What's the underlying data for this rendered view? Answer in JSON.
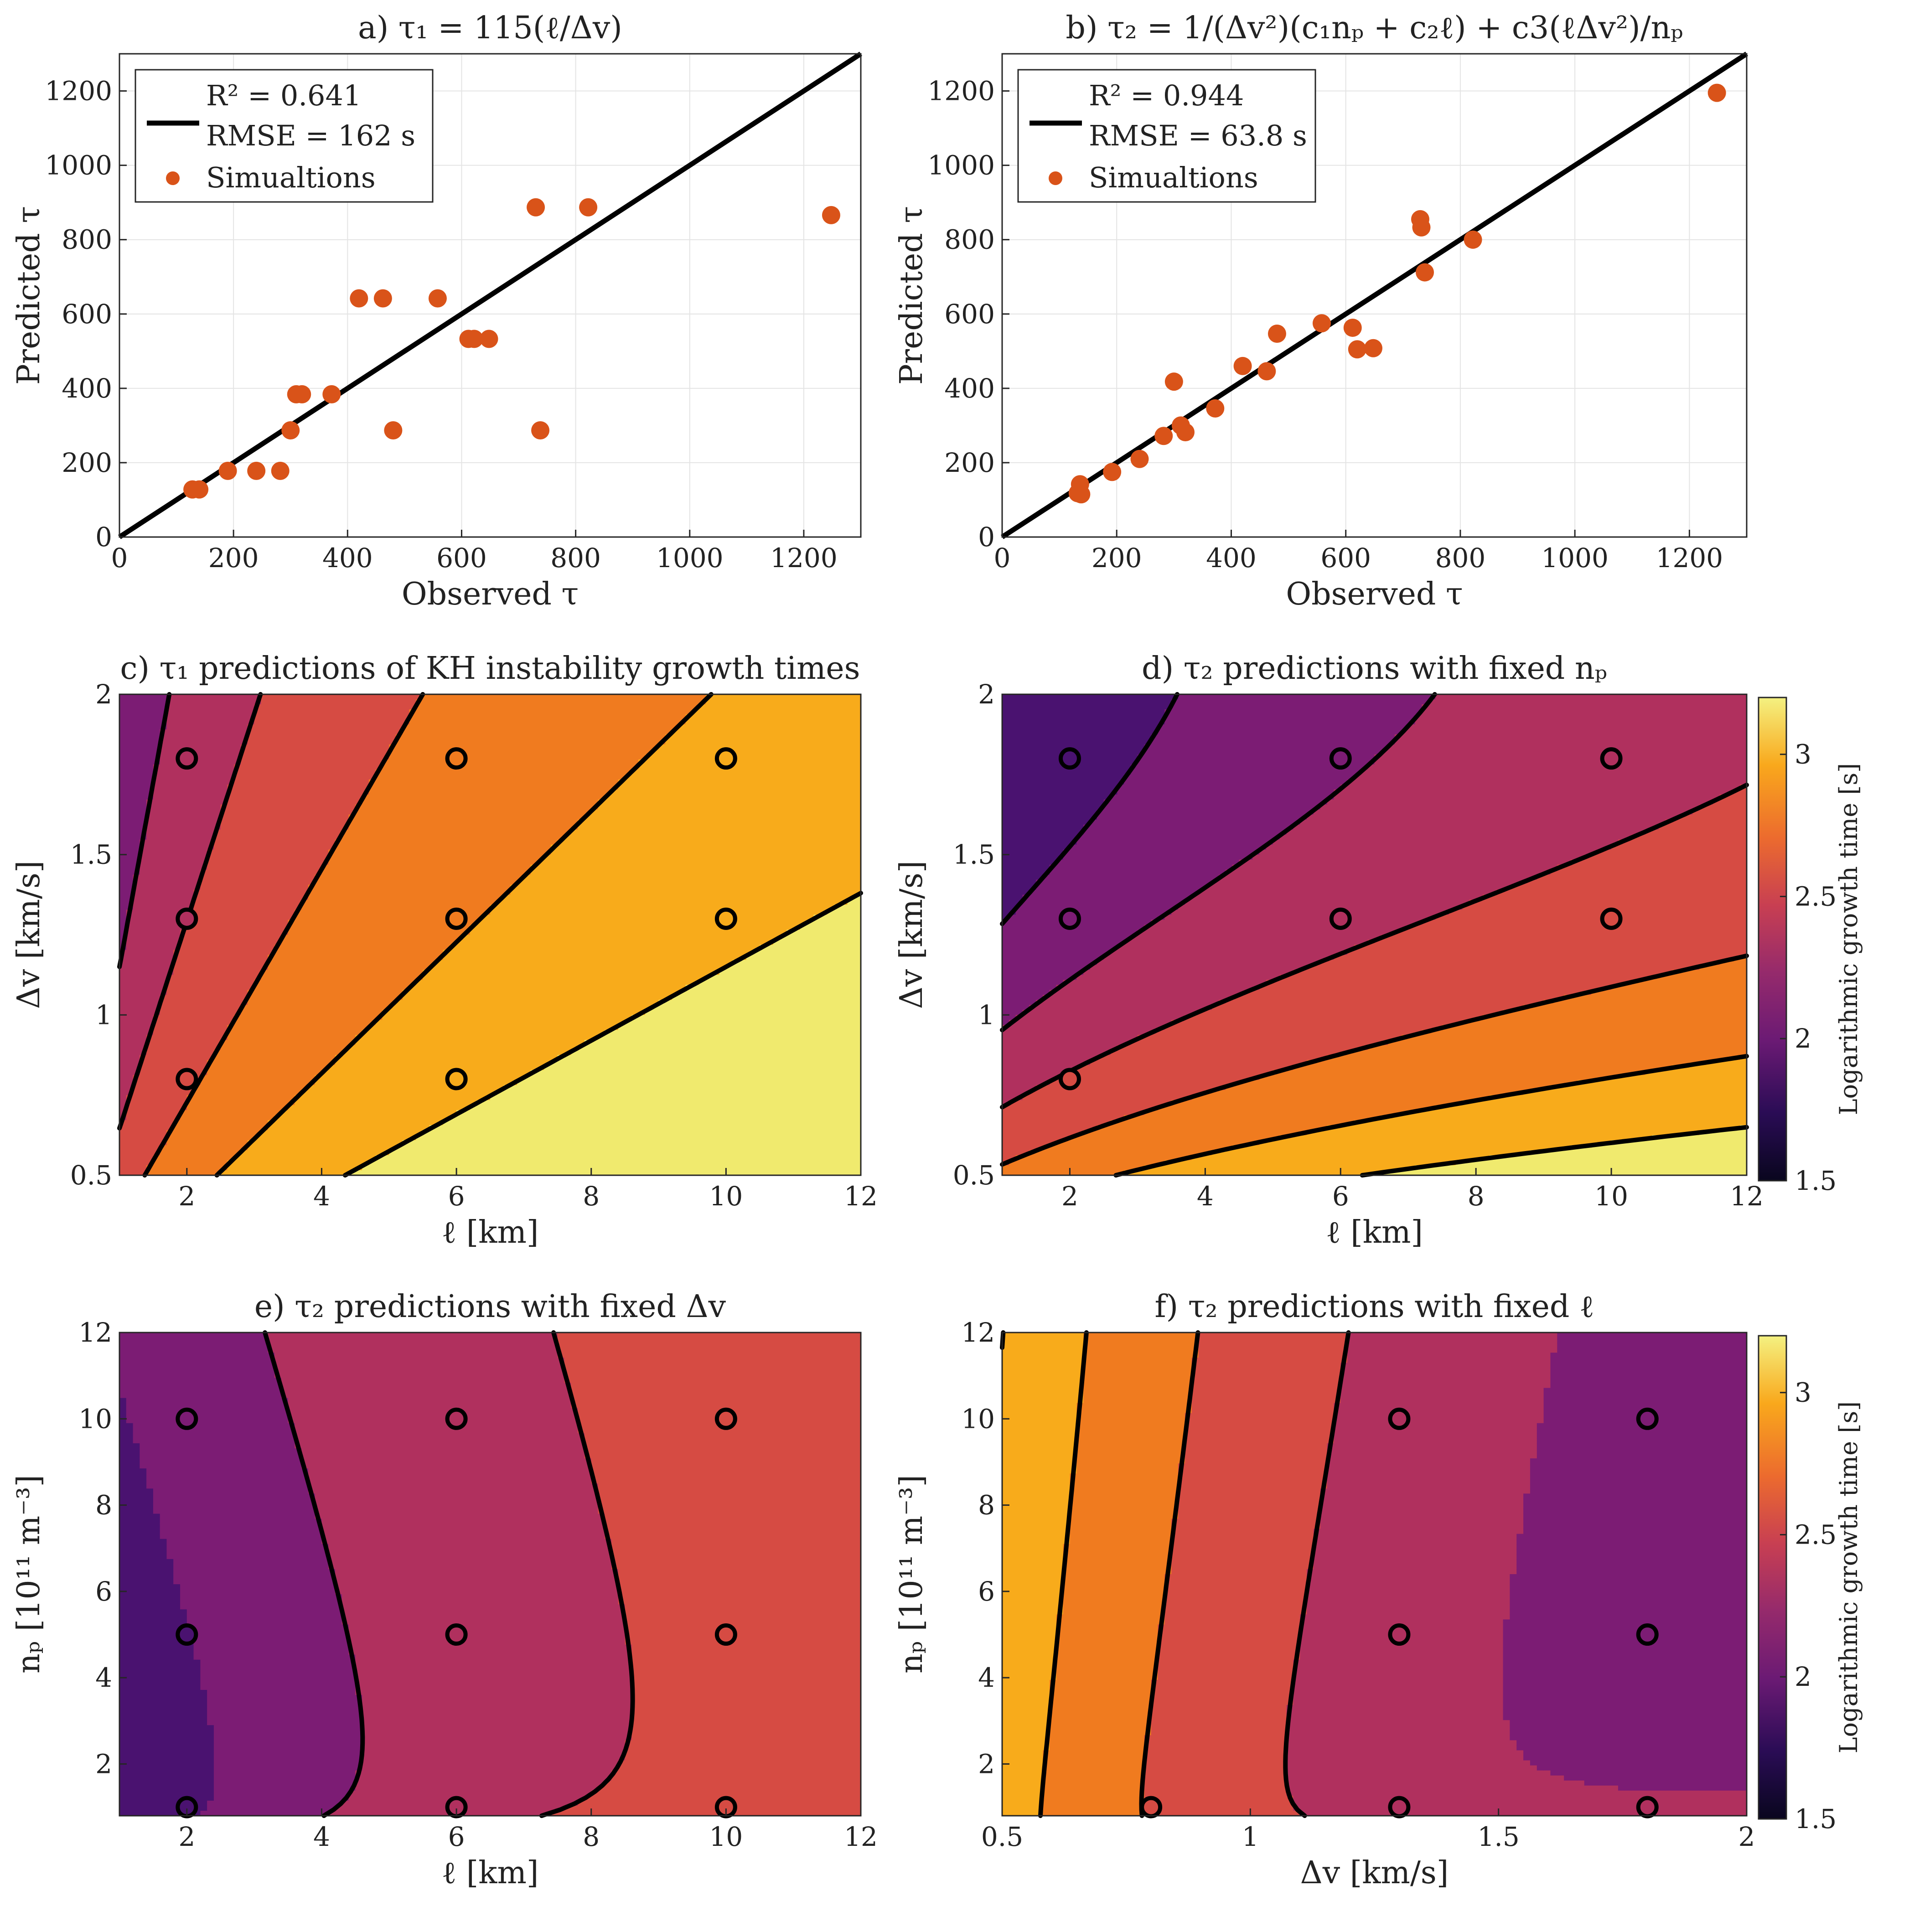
{
  "chart_data": [
    {
      "id": "a",
      "type": "scatter",
      "title": "a) τ₁ = 115(ℓ/Δv)",
      "xlabel": "Observed τ",
      "ylabel": "Predicted τ",
      "xlim": [
        0,
        1300
      ],
      "ylim": [
        0,
        1300
      ],
      "xticks": [
        0,
        200,
        400,
        600,
        800,
        1000,
        1200
      ],
      "yticks": [
        0,
        200,
        400,
        600,
        800,
        1000,
        1200
      ],
      "grid": true,
      "legend_position": "top-left",
      "legend": [
        "R² = 0.641",
        "RMSE = 162 s",
        "Simualtions"
      ],
      "fit_line": [
        [
          0,
          0
        ],
        [
          1300,
          1300
        ]
      ],
      "points": [
        [
          128,
          128
        ],
        [
          140,
          128
        ],
        [
          190,
          178
        ],
        [
          240,
          178
        ],
        [
          282,
          178
        ],
        [
          300,
          287
        ],
        [
          310,
          384
        ],
        [
          320,
          384
        ],
        [
          372,
          384
        ],
        [
          420,
          642
        ],
        [
          462,
          642
        ],
        [
          480,
          287
        ],
        [
          558,
          642
        ],
        [
          612,
          533
        ],
        [
          622,
          533
        ],
        [
          648,
          533
        ],
        [
          730,
          887
        ],
        [
          738,
          287
        ],
        [
          822,
          887
        ],
        [
          1248,
          866
        ]
      ]
    },
    {
      "id": "b",
      "type": "scatter",
      "title": "b) τ₂ = 1/(Δv²)(c₁nₚ + c₂ℓ) + c3(ℓΔv²)/nₚ",
      "xlabel": "Observed τ",
      "ylabel": "Predicted τ",
      "xlim": [
        0,
        1300
      ],
      "ylim": [
        0,
        1300
      ],
      "xticks": [
        0,
        200,
        400,
        600,
        800,
        1000,
        1200
      ],
      "yticks": [
        0,
        200,
        400,
        600,
        800,
        1000,
        1200
      ],
      "grid": true,
      "legend_position": "top-left",
      "legend": [
        "R² = 0.944",
        "RMSE = 63.8 s",
        "Simualtions"
      ],
      "fit_line": [
        [
          0,
          0
        ],
        [
          1300,
          1300
        ]
      ],
      "points": [
        [
          132,
          118
        ],
        [
          136,
          142
        ],
        [
          138,
          115
        ],
        [
          192,
          175
        ],
        [
          240,
          210
        ],
        [
          282,
          272
        ],
        [
          300,
          418
        ],
        [
          312,
          300
        ],
        [
          320,
          282
        ],
        [
          372,
          346
        ],
        [
          420,
          460
        ],
        [
          462,
          446
        ],
        [
          480,
          547
        ],
        [
          558,
          575
        ],
        [
          612,
          563
        ],
        [
          620,
          505
        ],
        [
          648,
          508
        ],
        [
          730,
          855
        ],
        [
          732,
          833
        ],
        [
          738,
          712
        ],
        [
          822,
          800
        ],
        [
          1248,
          1195
        ]
      ]
    },
    {
      "id": "c",
      "type": "contour",
      "title": "c) τ₁ predictions of KH instability growth times",
      "xlabel": "ℓ [km]",
      "ylabel": "Δv [km/s]",
      "xlim": [
        1,
        12
      ],
      "ylim": [
        0.5,
        2
      ],
      "xticks": [
        2,
        4,
        6,
        8,
        10,
        12
      ],
      "yticks": [
        0.5,
        1,
        1.5,
        2
      ],
      "contour_levels": [
        1.75,
        2.0,
        2.25,
        2.5,
        2.75,
        3.0
      ],
      "markers": [
        [
          2,
          1.8
        ],
        [
          2,
          1.3
        ],
        [
          2,
          0.8
        ],
        [
          6,
          1.8
        ],
        [
          6,
          1.3
        ],
        [
          6,
          0.8
        ],
        [
          10,
          1.8
        ],
        [
          10,
          1.3
        ]
      ]
    },
    {
      "id": "d",
      "type": "contour",
      "title": "d) τ₂ predictions with fixed nₚ",
      "xlabel": "ℓ [km]",
      "ylabel": "Δv [km/s]",
      "xlim": [
        1,
        12
      ],
      "ylim": [
        0.5,
        2
      ],
      "xticks": [
        2,
        4,
        6,
        8,
        10,
        12
      ],
      "yticks": [
        0.5,
        1,
        1.5,
        2
      ],
      "contour_levels": [
        1.75,
        2.0,
        2.25,
        2.5,
        2.75,
        3.0
      ],
      "markers": [
        [
          2,
          1.8
        ],
        [
          2,
          1.3
        ],
        [
          2,
          0.8
        ],
        [
          6,
          1.8
        ],
        [
          6,
          1.3
        ],
        [
          10,
          1.8
        ],
        [
          10,
          1.3
        ]
      ],
      "colorbar": {
        "label": "Logarithmic growth time [s]",
        "range": [
          1.5,
          3.2
        ],
        "ticks": [
          1.5,
          2,
          2.5,
          3
        ]
      }
    },
    {
      "id": "e",
      "type": "contour",
      "title": "e) τ₂ predictions with fixed Δv",
      "xlabel": "ℓ [km]",
      "ylabel": "nₚ [10¹¹ m⁻³]",
      "xlim": [
        1,
        12
      ],
      "ylim": [
        0.8,
        12
      ],
      "xticks": [
        2,
        4,
        6,
        8,
        10,
        12
      ],
      "yticks": [
        2,
        4,
        6,
        8,
        10,
        12
      ],
      "contour_levels": [
        2.0,
        2.25,
        2.5,
        2.75
      ],
      "markers": [
        [
          2,
          10
        ],
        [
          2,
          5
        ],
        [
          2,
          1
        ],
        [
          6,
          10
        ],
        [
          6,
          5
        ],
        [
          6,
          1
        ],
        [
          10,
          10
        ],
        [
          10,
          5
        ],
        [
          10,
          1
        ]
      ]
    },
    {
      "id": "f",
      "type": "contour",
      "title": "f) τ₂ predictions with fixed ℓ",
      "xlabel": "Δv [km/s]",
      "ylabel": "nₚ [10¹¹ m⁻³]",
      "xlim": [
        0.5,
        2
      ],
      "ylim": [
        0.8,
        12
      ],
      "xticks": [
        0.5,
        1,
        1.5,
        2
      ],
      "yticks": [
        2,
        4,
        6,
        8,
        10,
        12
      ],
      "contour_levels": [
        2.25,
        2.5,
        2.75,
        3.0
      ],
      "markers": [
        [
          0.8,
          1
        ],
        [
          1.3,
          10
        ],
        [
          1.3,
          5
        ],
        [
          1.3,
          1
        ],
        [
          1.8,
          10
        ],
        [
          1.8,
          5
        ],
        [
          1.8,
          1
        ]
      ],
      "colorbar": {
        "label": "Logarithmic growth time [s]",
        "range": [
          1.5,
          3.2
        ],
        "ticks": [
          1.5,
          2,
          2.5,
          3
        ]
      }
    }
  ],
  "colors": {
    "scatter": "#d95319",
    "fit_line": "#000000",
    "grid": "#e4e4e4"
  }
}
